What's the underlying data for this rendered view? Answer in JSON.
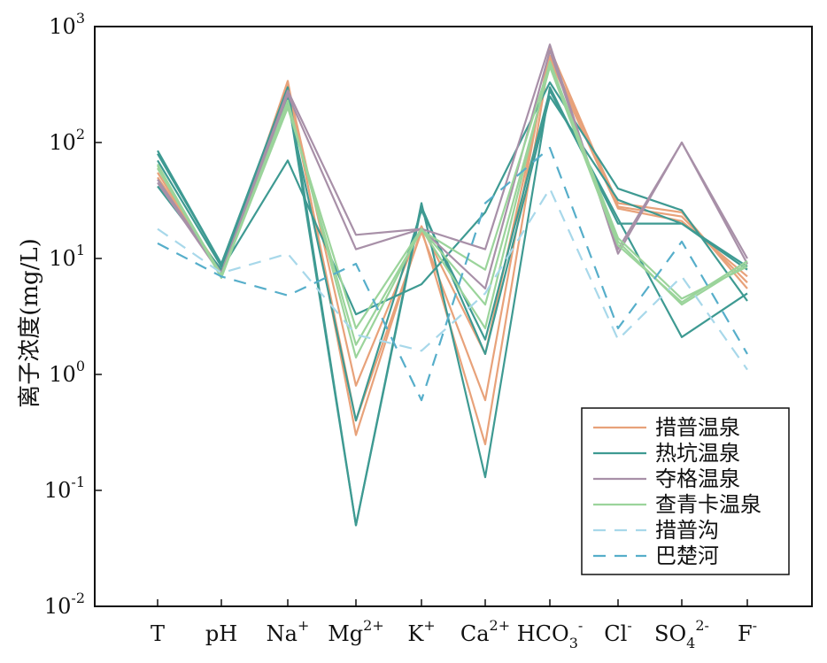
{
  "chart_data": {
    "type": "line",
    "ylabel": "离子浓度(mg/L)",
    "yscale": "log",
    "ylim": [
      0.01,
      1000
    ],
    "y_ticks": [
      {
        "base": "10",
        "exp": "-2"
      },
      {
        "base": "10",
        "exp": "-1"
      },
      {
        "base": "10",
        "exp": "0"
      },
      {
        "base": "10",
        "exp": "1"
      },
      {
        "base": "10",
        "exp": "2"
      },
      {
        "base": "10",
        "exp": "3"
      }
    ],
    "x_ticks": [
      {
        "main": "T",
        "sup": "",
        "sub": "",
        "sup2": ""
      },
      {
        "main": "pH",
        "sup": "",
        "sub": "",
        "sup2": ""
      },
      {
        "main": "Na",
        "sup": "+",
        "sub": "",
        "sup2": ""
      },
      {
        "main": "Mg",
        "sup": "2+",
        "sub": "",
        "sup2": ""
      },
      {
        "main": "K",
        "sup": "+",
        "sub": "",
        "sup2": ""
      },
      {
        "main": "Ca",
        "sup": "2+",
        "sub": "",
        "sup2": ""
      },
      {
        "main": "HCO",
        "sup": "",
        "sub": "3",
        "sup2": "-"
      },
      {
        "main": "Cl",
        "sup": "-",
        "sub": "",
        "sup2": ""
      },
      {
        "main": "SO",
        "sup": "",
        "sub": "4",
        "sup2": "2-"
      },
      {
        "main": "F",
        "sup": "-",
        "sub": "",
        "sup2": ""
      }
    ],
    "categories": [
      "T",
      "pH",
      "Na+",
      "Mg2+",
      "K+",
      "Ca2+",
      "HCO3-",
      "Cl-",
      "SO42-",
      "F-"
    ],
    "legend_position": "bottom-right",
    "series": [
      {
        "name": "措普温泉",
        "color": "#E8A27A",
        "dash": false,
        "lines": [
          [
            60,
            7,
            340,
            0.3,
            18,
            0.25,
            560,
            30,
            25,
            5.5
          ],
          [
            55,
            7.5,
            300,
            0.4,
            17,
            0.6,
            650,
            28,
            23,
            6.2
          ],
          [
            50,
            7.8,
            320,
            0.8,
            19,
            1.5,
            520,
            27,
            21,
            7
          ]
        ]
      },
      {
        "name": "热坑温泉",
        "color": "#3E9A92",
        "dash": false,
        "lines": [
          [
            85,
            9,
            300,
            0.05,
            30,
            0.13,
            300,
            20,
            20,
            8
          ],
          [
            70,
            8.5,
            220,
            0.4,
            26,
            2,
            280,
            22,
            2.1,
            5
          ],
          [
            42,
            8,
            70,
            3.3,
            6,
            25,
            330,
            40,
            26,
            4.3
          ],
          [
            80,
            9,
            250,
            0.05,
            28,
            1.5,
            250,
            32,
            20,
            8.5
          ]
        ]
      },
      {
        "name": "夺格温泉",
        "color": "#A890A8",
        "dash": false,
        "lines": [
          [
            48,
            7.5,
            280,
            16,
            18,
            12,
            700,
            11,
            100,
            10
          ],
          [
            45,
            7.2,
            260,
            12,
            18,
            5.5,
            620,
            12,
            100,
            9
          ]
        ]
      },
      {
        "name": "查青卡温泉",
        "color": "#9BD49B",
        "dash": false,
        "lines": [
          [
            65,
            6.8,
            230,
            1.4,
            18,
            2.5,
            500,
            14,
            4,
            9
          ],
          [
            60,
            7,
            200,
            2.5,
            18,
            4,
            450,
            13,
            4.2,
            9.5
          ],
          [
            63,
            7.2,
            210,
            1.8,
            17.5,
            8,
            480,
            15,
            4.5,
            8.5
          ]
        ]
      },
      {
        "name": "措普沟",
        "color": "#A8D8EA",
        "dash": true,
        "lines": [
          [
            18,
            7.5,
            11,
            2.2,
            1.6,
            5,
            40,
            2,
            7,
            1.1
          ]
        ]
      },
      {
        "name": "巴楚河",
        "color": "#56AECA",
        "dash": true,
        "lines": [
          [
            13.5,
            7,
            4.8,
            9,
            0.6,
            30,
            90,
            2.5,
            14,
            1.5
          ]
        ]
      }
    ]
  }
}
